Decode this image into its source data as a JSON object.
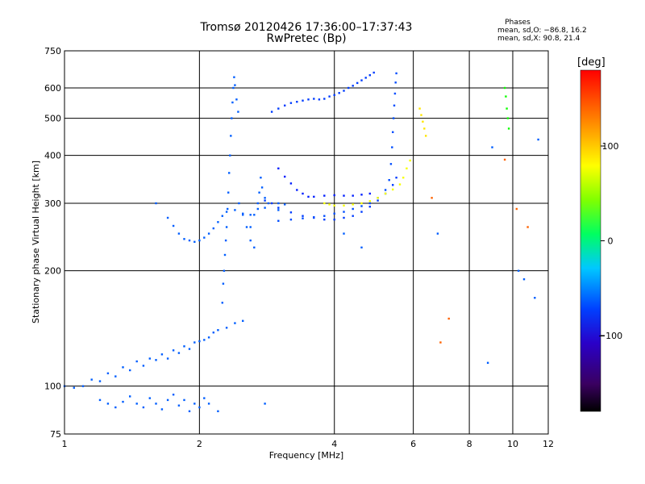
{
  "header": {
    "title": "Tromsø 20120426 17:36:00–17:37:43",
    "subtitle": "RwPretec (Bp)"
  },
  "stats": {
    "heading": "Phases",
    "line_o": "mean, sd,O: −86.8, 16.2",
    "line_x": "mean, sd,X:  90.8, 21.4"
  },
  "colorbar": {
    "unit": "[deg]",
    "range": [
      -180,
      180
    ],
    "ticks": [
      100,
      0,
      -100
    ],
    "tick_labels": [
      "100",
      "0",
      "−100"
    ]
  },
  "chart_data": {
    "type": "scatter",
    "xlabel": "Frequency [MHz]",
    "ylabel": "Stationary phase Virtual Height [km]",
    "xscale": "log",
    "yscale": "log",
    "xlim": [
      1,
      12
    ],
    "ylim": [
      75,
      750
    ],
    "xticks": [
      1,
      2,
      4,
      6,
      8,
      10,
      12
    ],
    "xtick_labels": [
      "1",
      "2",
      "4",
      "6",
      "8",
      "10",
      "12"
    ],
    "yticks": [
      75,
      100,
      200,
      300,
      400,
      500,
      600,
      750
    ],
    "ytick_labels": [
      "75",
      "100",
      "200",
      "300",
      "400",
      "500",
      "600",
      "750"
    ],
    "grid": true,
    "colorbar_label": "[deg]",
    "series": [
      {
        "phase": -100,
        "points": [
          [
            1.0,
            100
          ],
          [
            1.05,
            99
          ],
          [
            1.1,
            100
          ],
          [
            1.15,
            104
          ],
          [
            1.2,
            103
          ],
          [
            1.25,
            108
          ],
          [
            1.3,
            106
          ],
          [
            1.35,
            112
          ],
          [
            1.4,
            110
          ],
          [
            1.45,
            116
          ],
          [
            1.5,
            113
          ],
          [
            1.55,
            118
          ],
          [
            1.6,
            117
          ],
          [
            1.65,
            121
          ],
          [
            1.7,
            118
          ],
          [
            1.75,
            124
          ],
          [
            1.8,
            122
          ],
          [
            1.85,
            127
          ],
          [
            1.9,
            125
          ],
          [
            1.95,
            130
          ],
          [
            2.0,
            131
          ],
          [
            2.05,
            132
          ],
          [
            2.1,
            134
          ],
          [
            2.15,
            138
          ],
          [
            2.2,
            140
          ],
          [
            2.3,
            142
          ],
          [
            2.4,
            146
          ],
          [
            2.5,
            148
          ]
        ]
      },
      {
        "phase": -100,
        "points": [
          [
            1.2,
            92
          ],
          [
            1.25,
            90
          ],
          [
            1.3,
            88
          ],
          [
            1.35,
            91
          ],
          [
            1.4,
            94
          ],
          [
            1.45,
            90
          ],
          [
            1.5,
            88
          ],
          [
            1.55,
            93
          ],
          [
            1.6,
            90
          ],
          [
            1.65,
            87
          ],
          [
            1.7,
            92
          ],
          [
            1.75,
            95
          ],
          [
            1.8,
            89
          ],
          [
            1.85,
            92
          ],
          [
            1.9,
            86
          ],
          [
            1.95,
            90
          ],
          [
            2.0,
            88
          ],
          [
            2.05,
            93
          ],
          [
            2.1,
            90
          ],
          [
            2.2,
            86
          ]
        ]
      },
      {
        "phase": -100,
        "points": [
          [
            2.25,
            165
          ],
          [
            2.26,
            185
          ],
          [
            2.27,
            200
          ],
          [
            2.28,
            220
          ],
          [
            2.29,
            240
          ],
          [
            2.3,
            260
          ],
          [
            2.31,
            290
          ],
          [
            2.32,
            320
          ],
          [
            2.33,
            360
          ],
          [
            2.34,
            400
          ],
          [
            2.35,
            450
          ],
          [
            2.36,
            500
          ],
          [
            2.37,
            550
          ],
          [
            2.38,
            600
          ],
          [
            2.39,
            640
          ],
          [
            2.4,
            610
          ],
          [
            2.42,
            560
          ],
          [
            2.44,
            520
          ],
          [
            2.45,
            300
          ],
          [
            2.5,
            280
          ],
          [
            2.55,
            260
          ],
          [
            2.6,
            240
          ],
          [
            2.65,
            230
          ]
        ]
      },
      {
        "phase": -100,
        "points": [
          [
            1.7,
            275
          ],
          [
            1.75,
            262
          ],
          [
            1.8,
            250
          ],
          [
            1.85,
            242
          ],
          [
            1.9,
            240
          ],
          [
            1.95,
            238
          ],
          [
            2.0,
            240
          ],
          [
            2.05,
            244
          ],
          [
            2.1,
            250
          ],
          [
            2.15,
            258
          ],
          [
            2.2,
            268
          ],
          [
            2.25,
            278
          ],
          [
            2.3,
            285
          ],
          [
            2.4,
            288
          ],
          [
            2.5,
            282
          ],
          [
            2.6,
            280
          ],
          [
            2.7,
            290
          ],
          [
            2.8,
            292
          ],
          [
            3.0,
            288
          ]
        ]
      },
      {
        "phase": -100,
        "points": [
          [
            2.6,
            260
          ],
          [
            2.65,
            280
          ],
          [
            2.7,
            300
          ],
          [
            2.72,
            320
          ],
          [
            2.74,
            350
          ],
          [
            2.76,
            330
          ],
          [
            2.8,
            310
          ],
          [
            2.85,
            300
          ],
          [
            3.0,
            300
          ],
          [
            3.1,
            298
          ]
        ]
      },
      {
        "phase": -110,
        "points": [
          [
            2.9,
            520
          ],
          [
            3.0,
            530
          ],
          [
            3.1,
            540
          ],
          [
            3.2,
            548
          ],
          [
            3.3,
            552
          ],
          [
            3.4,
            556
          ],
          [
            3.5,
            560
          ],
          [
            3.6,
            562
          ],
          [
            3.7,
            560
          ],
          [
            3.8,
            562
          ],
          [
            3.9,
            570
          ],
          [
            4.0,
            575
          ],
          [
            4.1,
            582
          ],
          [
            4.2,
            590
          ],
          [
            4.3,
            600
          ],
          [
            4.4,
            608
          ],
          [
            4.5,
            618
          ],
          [
            4.6,
            628
          ],
          [
            4.7,
            638
          ],
          [
            4.8,
            648
          ],
          [
            4.9,
            658
          ]
        ]
      },
      {
        "phase": -120,
        "points": [
          [
            3.0,
            370
          ],
          [
            3.1,
            352
          ],
          [
            3.2,
            338
          ],
          [
            3.3,
            325
          ],
          [
            3.4,
            318
          ],
          [
            3.5,
            312
          ],
          [
            3.6,
            312
          ],
          [
            3.8,
            314
          ],
          [
            4.0,
            315
          ],
          [
            4.2,
            314
          ],
          [
            4.4,
            314
          ],
          [
            4.6,
            316
          ],
          [
            4.8,
            318
          ]
        ]
      },
      {
        "phase": -110,
        "points": [
          [
            2.8,
            305
          ],
          [
            2.9,
            300
          ],
          [
            3.0,
            292
          ],
          [
            3.2,
            284
          ],
          [
            3.4,
            278
          ],
          [
            3.6,
            275
          ],
          [
            3.8,
            272
          ],
          [
            4.0,
            272
          ],
          [
            4.2,
            275
          ],
          [
            4.4,
            278
          ],
          [
            4.6,
            285
          ],
          [
            4.8,
            294
          ],
          [
            5.0,
            305
          ],
          [
            5.2,
            318
          ],
          [
            5.4,
            335
          ],
          [
            5.5,
            350
          ]
        ]
      },
      {
        "phase": -105,
        "points": [
          [
            3.0,
            270
          ],
          [
            3.2,
            272
          ],
          [
            3.4,
            274
          ],
          [
            3.6,
            276
          ],
          [
            3.8,
            278
          ],
          [
            4.0,
            282
          ],
          [
            4.2,
            285
          ],
          [
            4.4,
            290
          ],
          [
            4.6,
            295
          ],
          [
            4.8,
            300
          ],
          [
            5.0,
            310
          ],
          [
            5.2,
            325
          ],
          [
            5.3,
            345
          ],
          [
            5.35,
            380
          ],
          [
            5.38,
            420
          ],
          [
            5.4,
            460
          ],
          [
            5.42,
            500
          ],
          [
            5.44,
            540
          ],
          [
            5.46,
            580
          ],
          [
            5.48,
            620
          ],
          [
            5.5,
            655
          ]
        ]
      },
      {
        "phase": 100,
        "points": [
          [
            3.8,
            300
          ],
          [
            3.9,
            298
          ],
          [
            4.0,
            296
          ],
          [
            4.2,
            296
          ],
          [
            4.4,
            298
          ],
          [
            4.6,
            300
          ],
          [
            4.8,
            304
          ],
          [
            5.0,
            310
          ],
          [
            5.2,
            318
          ],
          [
            5.4,
            326
          ],
          [
            5.6,
            336
          ],
          [
            5.7,
            350
          ],
          [
            5.8,
            370
          ],
          [
            5.9,
            388
          ]
        ]
      },
      {
        "phase": 110,
        "points": [
          [
            6.2,
            530
          ],
          [
            6.25,
            510
          ],
          [
            6.3,
            490
          ],
          [
            6.35,
            470
          ],
          [
            6.4,
            450
          ]
        ]
      },
      {
        "phase": 30,
        "points": [
          [
            9.6,
            600
          ],
          [
            9.65,
            570
          ],
          [
            9.7,
            530
          ],
          [
            9.75,
            500
          ],
          [
            9.8,
            470
          ]
        ]
      },
      {
        "phase": 150,
        "points": [
          [
            6.6,
            310
          ],
          [
            7.2,
            150
          ],
          [
            6.9,
            130
          ],
          [
            9.6,
            390
          ],
          [
            10.2,
            290
          ],
          [
            10.8,
            260
          ]
        ]
      },
      {
        "phase": -100,
        "points": [
          [
            1.6,
            300
          ],
          [
            4.2,
            250
          ],
          [
            4.6,
            230
          ],
          [
            6.8,
            250
          ],
          [
            8.8,
            115
          ],
          [
            9.0,
            420
          ],
          [
            10.3,
            200
          ],
          [
            10.6,
            190
          ],
          [
            11.2,
            170
          ],
          [
            11.4,
            440
          ],
          [
            2.8,
            90
          ]
        ]
      }
    ]
  }
}
